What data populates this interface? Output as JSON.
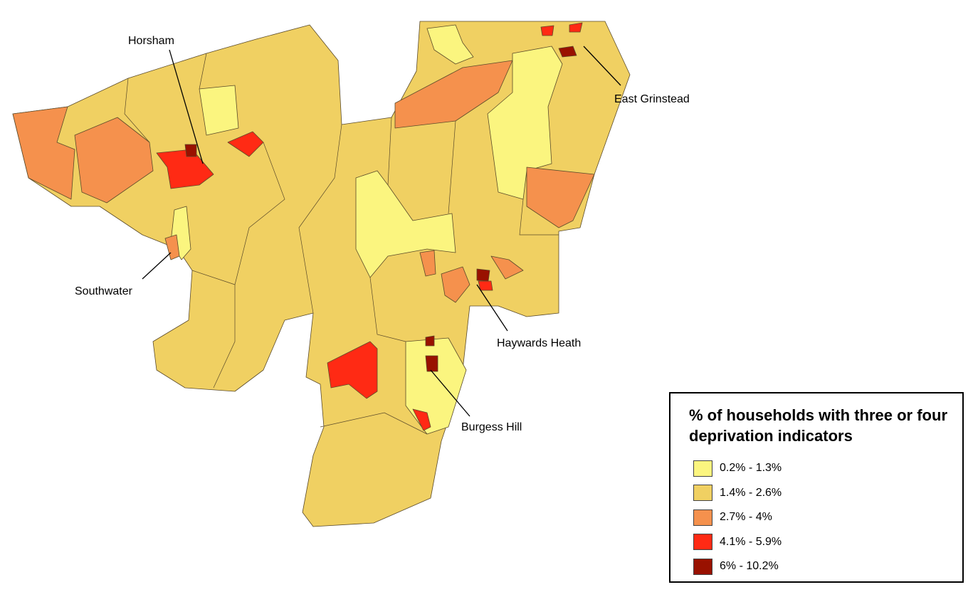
{
  "places": [
    "Horsham",
    "Southwater",
    "East Grinstead",
    "Haywards Heath",
    "Burgess Hill"
  ],
  "legend": {
    "title": "% of households with three or four deprivation indicators",
    "items": [
      {
        "label": "0.2% - 1.3%",
        "color": "#fbf57f"
      },
      {
        "label": "1.4% - 2.6%",
        "color": "#f0d062"
      },
      {
        "label": "2.7% - 4%",
        "color": "#f5914d"
      },
      {
        "label": "4.1% - 5.9%",
        "color": "#ff2a14"
      },
      {
        "label": "6% - 10.2%",
        "color": "#991100"
      }
    ]
  }
}
